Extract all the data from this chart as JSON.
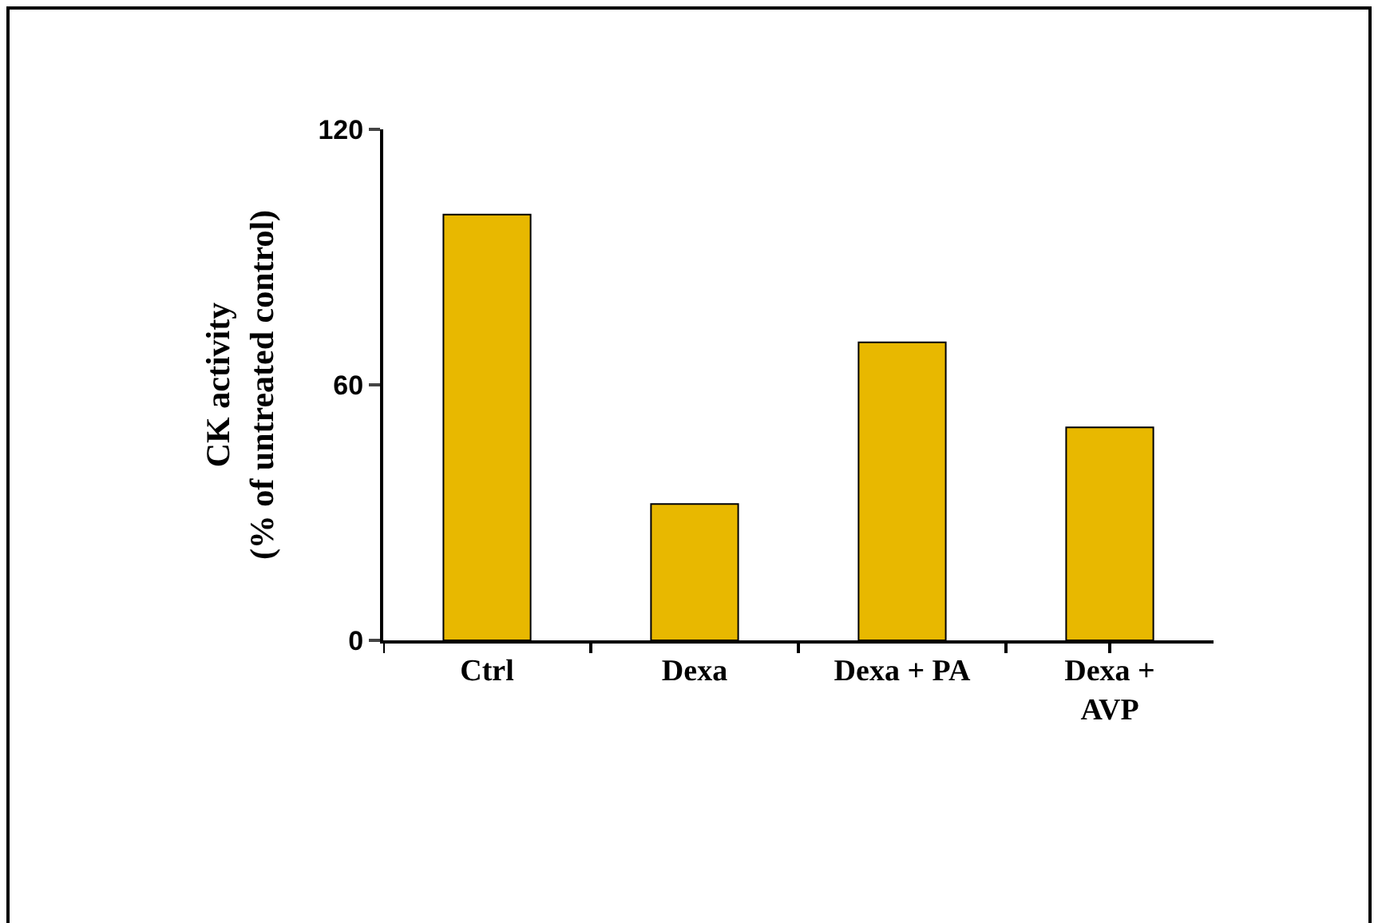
{
  "chart_data": {
    "type": "bar",
    "ylabel": "CK activity\n(% of untreated control)",
    "categories": [
      "Ctrl",
      "Dexa",
      "Dexa + PA",
      "Dexa + AVP"
    ],
    "values": [
      100,
      32,
      70,
      50
    ],
    "color": "#e8b800",
    "ylim": [
      0,
      120
    ],
    "yticks": [
      0,
      60,
      120
    ],
    "grid": false
  }
}
